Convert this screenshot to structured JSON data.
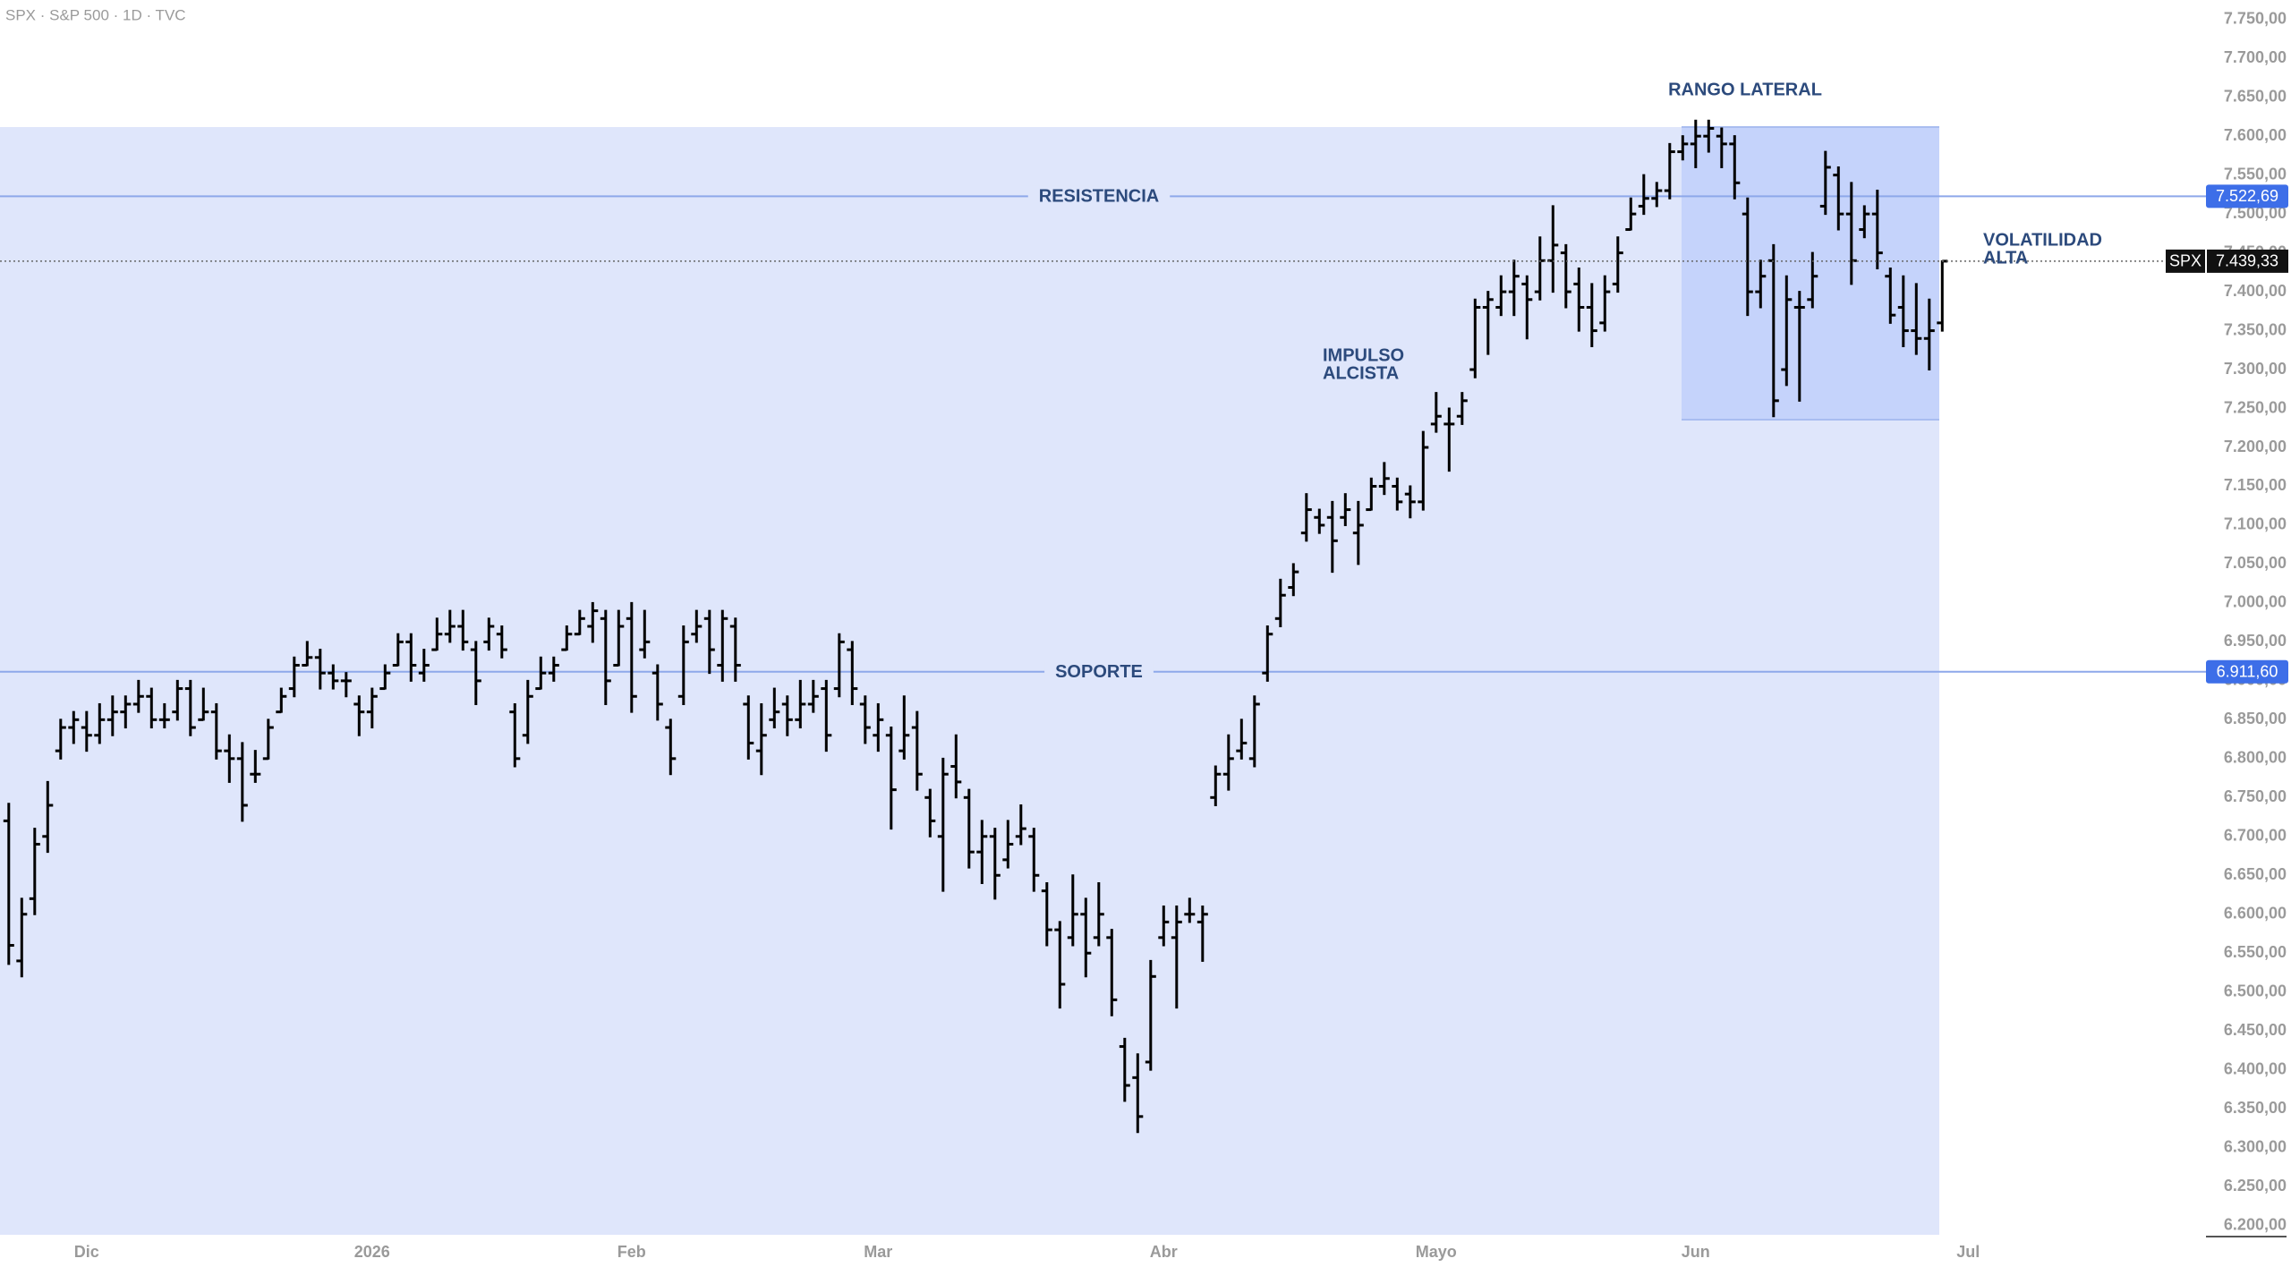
{
  "chart_data": {
    "type": "ohlc",
    "title": "SPX · S&P 500 · 1D · TVC",
    "categories": [
      null,
      null,
      null,
      null,
      null,
      null,
      "Dic",
      null,
      null,
      null,
      null,
      null,
      null,
      null,
      null,
      null,
      null,
      null,
      null,
      null,
      null,
      null,
      null,
      null,
      null,
      null,
      null,
      null,
      "2026",
      null,
      null,
      null,
      null,
      null,
      null,
      null,
      null,
      null,
      null,
      null,
      null,
      null,
      null,
      null,
      null,
      null,
      null,
      null,
      "Feb",
      null,
      null,
      null,
      null,
      null,
      null,
      null,
      null,
      null,
      null,
      null,
      null,
      null,
      null,
      null,
      null,
      null,
      null,
      "Mar",
      null,
      null,
      null,
      null,
      null,
      null,
      null,
      null,
      null,
      null,
      null,
      null,
      null,
      null,
      null,
      null,
      null,
      null,
      null,
      null,
      null,
      "Abr",
      null,
      null,
      null,
      null,
      null,
      null,
      null,
      null,
      null,
      null,
      null,
      null,
      null,
      null,
      null,
      null,
      null,
      null,
      null,
      null,
      "Mayo",
      null,
      null,
      null,
      null,
      null,
      null,
      null,
      null,
      null,
      null,
      null,
      null,
      null,
      null,
      null,
      null,
      null,
      null,
      null,
      "Jun",
      null,
      null,
      null,
      null,
      null,
      null,
      null,
      null,
      null,
      null,
      null,
      null,
      null,
      null,
      null,
      null,
      null,
      null,
      null,
      null,
      "Jul"
    ],
    "open": [
      6720,
      6540,
      6620,
      6700,
      6810,
      6840,
      6840,
      6830,
      6850,
      6860,
      6870,
      6880,
      6850,
      6860,
      6890,
      6850,
      6860,
      6810,
      6800,
      6780,
      6800,
      6860,
      6890,
      6920,
      6930,
      6910,
      6900,
      6870,
      6860,
      6890,
      6920,
      6950,
      6910,
      6940,
      6960,
      6970,
      6940,
      6950,
      6960,
      6860,
      6830,
      6890,
      6910,
      6940,
      6960,
      6970,
      6980,
      6920,
      6980,
      6940,
      6910,
      6840,
      6880,
      6960,
      6980,
      6920,
      6970,
      6870,
      6810,
      6850,
      6870,
      6850,
      6870,
      6890,
      6890,
      6940,
      6870,
      6830,
      6830,
      6810,
      6840,
      6750,
      6700,
      6790,
      6750,
      6680,
      6700,
      6670,
      6700,
      6700,
      6630,
      6580,
      6570,
      6600,
      6570,
      6570,
      6430,
      6390,
      6410,
      6570,
      6570,
      6600,
      6590,
      6750,
      6780,
      6810,
      6800,
      6910,
      6980,
      7020,
      7090,
      7110,
      7110,
      7110,
      7090,
      7120,
      7150,
      7150,
      7140,
      7130,
      7230,
      7230,
      7240,
      7300,
      7380,
      7380,
      7400,
      7410,
      7400,
      7440,
      7450,
      7410,
      7380,
      7360,
      7410,
      7480,
      7510,
      7520,
      7530,
      7580,
      7590,
      7600,
      7600,
      7590,
      7500,
      7400,
      7440,
      7300,
      7380,
      7390,
      7510,
      7550,
      7500,
      7480,
      7500,
      7420,
      7380,
      7350,
      7340,
      7360,
      null,
      null
    ],
    "high": [
      6742,
      6620,
      6710,
      6770,
      6850,
      6860,
      6860,
      6870,
      6880,
      6880,
      6900,
      6890,
      6870,
      6900,
      6900,
      6890,
      6870,
      6830,
      6820,
      6810,
      6850,
      6890,
      6930,
      6950,
      6940,
      6920,
      6910,
      6880,
      6890,
      6920,
      6960,
      6960,
      6940,
      6980,
      6990,
      6990,
      6950,
      6980,
      6970,
      6870,
      6900,
      6930,
      6930,
      6970,
      6990,
      7000,
      6990,
      6990,
      7000,
      6990,
      6920,
      6850,
      6970,
      6990,
      6990,
      6990,
      6980,
      6880,
      6870,
      6890,
      6880,
      6900,
      6900,
      6900,
      6960,
      6950,
      6880,
      6870,
      6840,
      6880,
      6860,
      6760,
      6800,
      6830,
      6760,
      6720,
      6710,
      6720,
      6740,
      6710,
      6640,
      6590,
      6650,
      6620,
      6640,
      6580,
      6440,
      6420,
      6540,
      6610,
      6610,
      6620,
      6610,
      6790,
      6830,
      6850,
      6880,
      6970,
      7030,
      7050,
      7140,
      7120,
      7130,
      7140,
      7130,
      7160,
      7180,
      7160,
      7150,
      7220,
      7270,
      7250,
      7270,
      7390,
      7400,
      7420,
      7440,
      7420,
      7470,
      7510,
      7460,
      7430,
      7410,
      7420,
      7470,
      7520,
      7550,
      7540,
      7590,
      7600,
      7620,
      7620,
      7610,
      7600,
      7520,
      7440,
      7460,
      7420,
      7400,
      7450,
      7580,
      7560,
      7540,
      7510,
      7530,
      7430,
      7420,
      7410,
      7390,
      7439.33,
      null,
      null
    ],
    "low": [
      6536,
      6520,
      6600,
      6680,
      6800,
      6820,
      6810,
      6820,
      6830,
      6840,
      6860,
      6840,
      6840,
      6850,
      6830,
      6850,
      6800,
      6770,
      6720,
      6770,
      6800,
      6860,
      6880,
      6920,
      6890,
      6890,
      6880,
      6830,
      6840,
      6890,
      6920,
      6900,
      6900,
      6940,
      6950,
      6940,
      6870,
      6940,
      6930,
      6790,
      6820,
      6890,
      6900,
      6940,
      6960,
      6950,
      6870,
      6920,
      6860,
      6930,
      6850,
      6780,
      6870,
      6950,
      6910,
      6900,
      6900,
      6800,
      6780,
      6840,
      6830,
      6840,
      6860,
      6810,
      6880,
      6870,
      6820,
      6810,
      6710,
      6800,
      6760,
      6700,
      6630,
      6750,
      6660,
      6640,
      6620,
      6660,
      6690,
      6630,
      6560,
      6480,
      6560,
      6520,
      6560,
      6470,
      6360,
      6320,
      6400,
      6560,
      6480,
      6590,
      6540,
      6740,
      6760,
      6800,
      6790,
      6900,
      6970,
      7010,
      7080,
      7090,
      7040,
      7100,
      7050,
      7120,
      7140,
      7120,
      7110,
      7120,
      7220,
      7170,
      7230,
      7290,
      7320,
      7370,
      7370,
      7340,
      7390,
      7400,
      7380,
      7350,
      7330,
      7350,
      7400,
      7480,
      7500,
      7510,
      7520,
      7570,
      7560,
      7580,
      7560,
      7520,
      7370,
      7380,
      7240,
      7280,
      7260,
      7380,
      7500,
      7480,
      7410,
      7470,
      7430,
      7360,
      7330,
      7320,
      7300,
      7350,
      null,
      null
    ],
    "close": [
      6560,
      6600,
      6690,
      6740,
      6840,
      6850,
      6830,
      6850,
      6860,
      6870,
      6880,
      6850,
      6850,
      6890,
      6840,
      6860,
      6810,
      6800,
      6740,
      6780,
      6840,
      6880,
      6920,
      6930,
      6910,
      6900,
      6900,
      6860,
      6880,
      6910,
      6950,
      6920,
      6920,
      6960,
      6970,
      6950,
      6900,
      6970,
      6940,
      6800,
      6880,
      6910,
      6920,
      6960,
      6980,
      6990,
      6900,
      6970,
      6880,
      6950,
      6870,
      6800,
      6950,
      6970,
      6940,
      6980,
      6920,
      6820,
      6830,
      6860,
      6850,
      6870,
      6880,
      6830,
      6950,
      6890,
      6840,
      6850,
      6760,
      6830,
      6780,
      6720,
      6780,
      6770,
      6680,
      6700,
      6650,
      6690,
      6710,
      6650,
      6580,
      6510,
      6600,
      6550,
      6600,
      6490,
      6380,
      6340,
      6520,
      6590,
      6590,
      6600,
      6600,
      6780,
      6800,
      6820,
      6870,
      6960,
      7010,
      7040,
      7120,
      7100,
      7080,
      7120,
      7100,
      7150,
      7160,
      7130,
      7130,
      7200,
      7240,
      7230,
      7260,
      7380,
      7390,
      7400,
      7420,
      7390,
      7440,
      7460,
      7400,
      7380,
      7350,
      7400,
      7450,
      7500,
      7520,
      7530,
      7580,
      7590,
      7600,
      7610,
      7590,
      7540,
      7400,
      7420,
      7260,
      7390,
      7380,
      7420,
      7560,
      7500,
      7440,
      7500,
      7450,
      7370,
      7350,
      7340,
      7350,
      7439.33,
      null,
      null
    ],
    "color": "#000000",
    "ylim": [
      6188,
      7775
    ],
    "yticks": [
      {
        "value": 6200,
        "label": "6.200,00"
      },
      {
        "value": 6250,
        "label": "6.250,00"
      },
      {
        "value": 6300,
        "label": "6.300,00"
      },
      {
        "value": 6350,
        "label": "6.350,00"
      },
      {
        "value": 6400,
        "label": "6.400,00"
      },
      {
        "value": 6450,
        "label": "6.450,00"
      },
      {
        "value": 6500,
        "label": "6.500,00"
      },
      {
        "value": 6550,
        "label": "6.550,00"
      },
      {
        "value": 6600,
        "label": "6.600,00"
      },
      {
        "value": 6650,
        "label": "6.650,00"
      },
      {
        "value": 6700,
        "label": "6.700,00"
      },
      {
        "value": 6750,
        "label": "6.750,00"
      },
      {
        "value": 6800,
        "label": "6.800,00"
      },
      {
        "value": 6850,
        "label": "6.850,00"
      },
      {
        "value": 6900,
        "label": "6.900,00"
      },
      {
        "value": 6950,
        "label": "6.950,00"
      },
      {
        "value": 7000,
        "label": "7.000,00"
      },
      {
        "value": 7050,
        "label": "7.050,00"
      },
      {
        "value": 7100,
        "label": "7.100,00"
      },
      {
        "value": 7150,
        "label": "7.150,00"
      },
      {
        "value": 7200,
        "label": "7.200,00"
      },
      {
        "value": 7250,
        "label": "7.250,00"
      },
      {
        "value": 7300,
        "label": "7.300,00"
      },
      {
        "value": 7350,
        "label": "7.350,00"
      },
      {
        "value": 7400,
        "label": "7.400,00"
      },
      {
        "value": 7450,
        "label": "7.450,00"
      },
      {
        "value": 7500,
        "label": "7.500,00"
      },
      {
        "value": 7550,
        "label": "7.550,00"
      },
      {
        "value": 7600,
        "label": "7.600,00"
      },
      {
        "value": 7650,
        "label": "7.650,00"
      },
      {
        "value": 7700,
        "label": "7.700,00"
      },
      {
        "value": 7750,
        "label": "7.750,00"
      }
    ],
    "levels": [
      {
        "name": "RESISTENCIA",
        "value": 7522.69,
        "label": "7.522,69",
        "color": "#3d6ee8"
      },
      {
        "name": "SOPORTE",
        "value": 6911.6,
        "label": "6.911,60",
        "color": "#3d6ee8"
      }
    ],
    "last": {
      "symbol": "SPX",
      "value": 7439.33,
      "label": "7.439,33"
    },
    "annotations": [
      {
        "lines": [
          "RANGO LATERAL"
        ]
      },
      {
        "lines": [
          "IMPULSO",
          "ALCISTA"
        ]
      },
      {
        "lines": [
          "VOLATILIDAD",
          "ALTA"
        ]
      }
    ]
  }
}
